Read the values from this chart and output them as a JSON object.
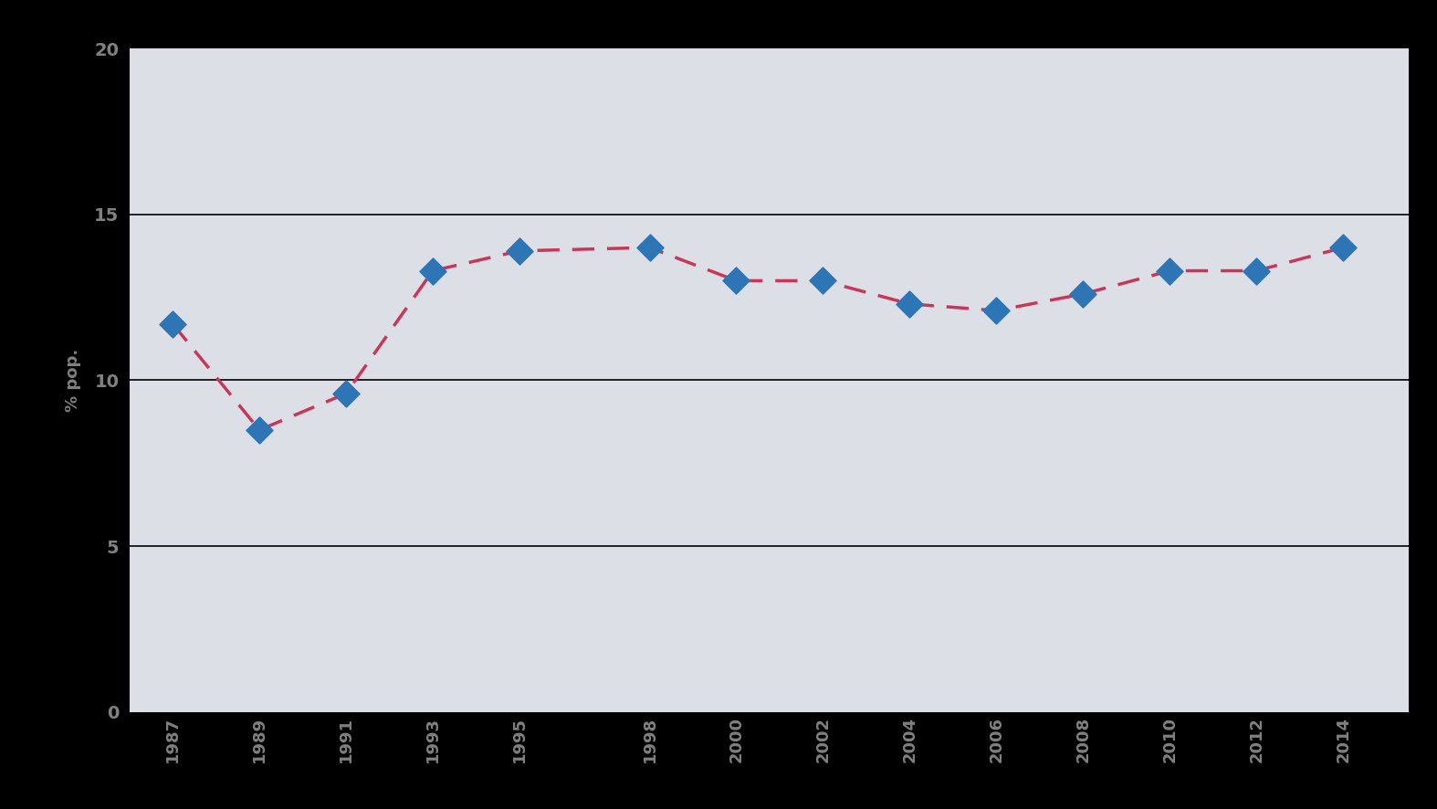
{
  "years": [
    1987,
    1989,
    1991,
    1993,
    1995,
    1998,
    2000,
    2002,
    2004,
    2006,
    2008,
    2010,
    2012,
    2014
  ],
  "values": [
    11.7,
    8.5,
    9.6,
    13.3,
    13.9,
    14.0,
    13.0,
    13.0,
    12.3,
    12.1,
    12.6,
    13.3,
    13.3,
    14.0
  ],
  "line_color": "#c8375a",
  "marker_color": "#2e75b6",
  "figure_bg": "#000000",
  "plot_bg": "#dce0e6",
  "ylabel": "% pop.",
  "ylim": [
    0,
    20
  ],
  "yticks": [
    0,
    5,
    10,
    15,
    20
  ],
  "grid_lines": [
    5,
    10,
    15
  ],
  "grid_color": "#000000",
  "tick_label_color": "#808080",
  "xlim_left": 1986.0,
  "xlim_right": 2015.5
}
